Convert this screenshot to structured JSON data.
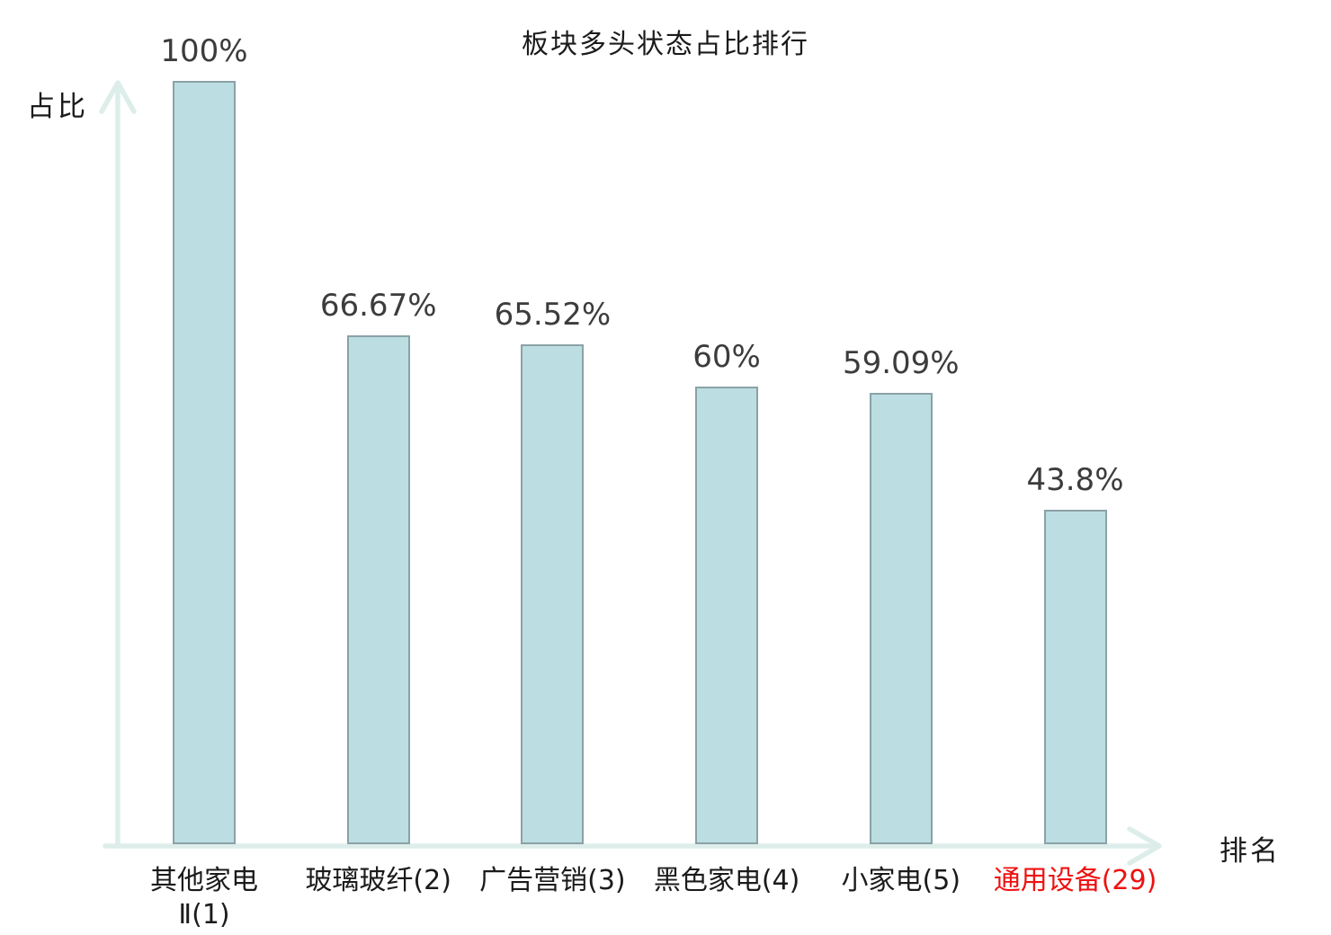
{
  "chart_data": {
    "type": "bar",
    "title": "板块多头状态占比排行",
    "xlabel": "排名",
    "ylabel": "占比",
    "ylim": [
      0,
      100
    ],
    "grid": false,
    "legend": "none",
    "categories": [
      "其他家电\nⅡ(1)",
      "玻璃玻纤(2)",
      "广告营销(3)",
      "黑色家电(4)",
      "小家电(5)",
      "通用设备(29)"
    ],
    "values": [
      100,
      66.67,
      65.52,
      60,
      59.09,
      43.8
    ],
    "value_labels": [
      "100%",
      "66.67%",
      "65.52%",
      "60%",
      "59.09%",
      "43.8%"
    ],
    "category_colors": [
      "#1b1b1b",
      "#1b1b1b",
      "#1b1b1b",
      "#1b1b1b",
      "#1b1b1b",
      "#ee1111"
    ],
    "highlighted_category": "通用设备(29)",
    "colors": {
      "bar_fill": "#bcdee2",
      "bar_border": "#8aa2a6",
      "axis": "#ddeeea",
      "value_label": "#3c3c3c",
      "text": "#1b1b1b"
    }
  }
}
